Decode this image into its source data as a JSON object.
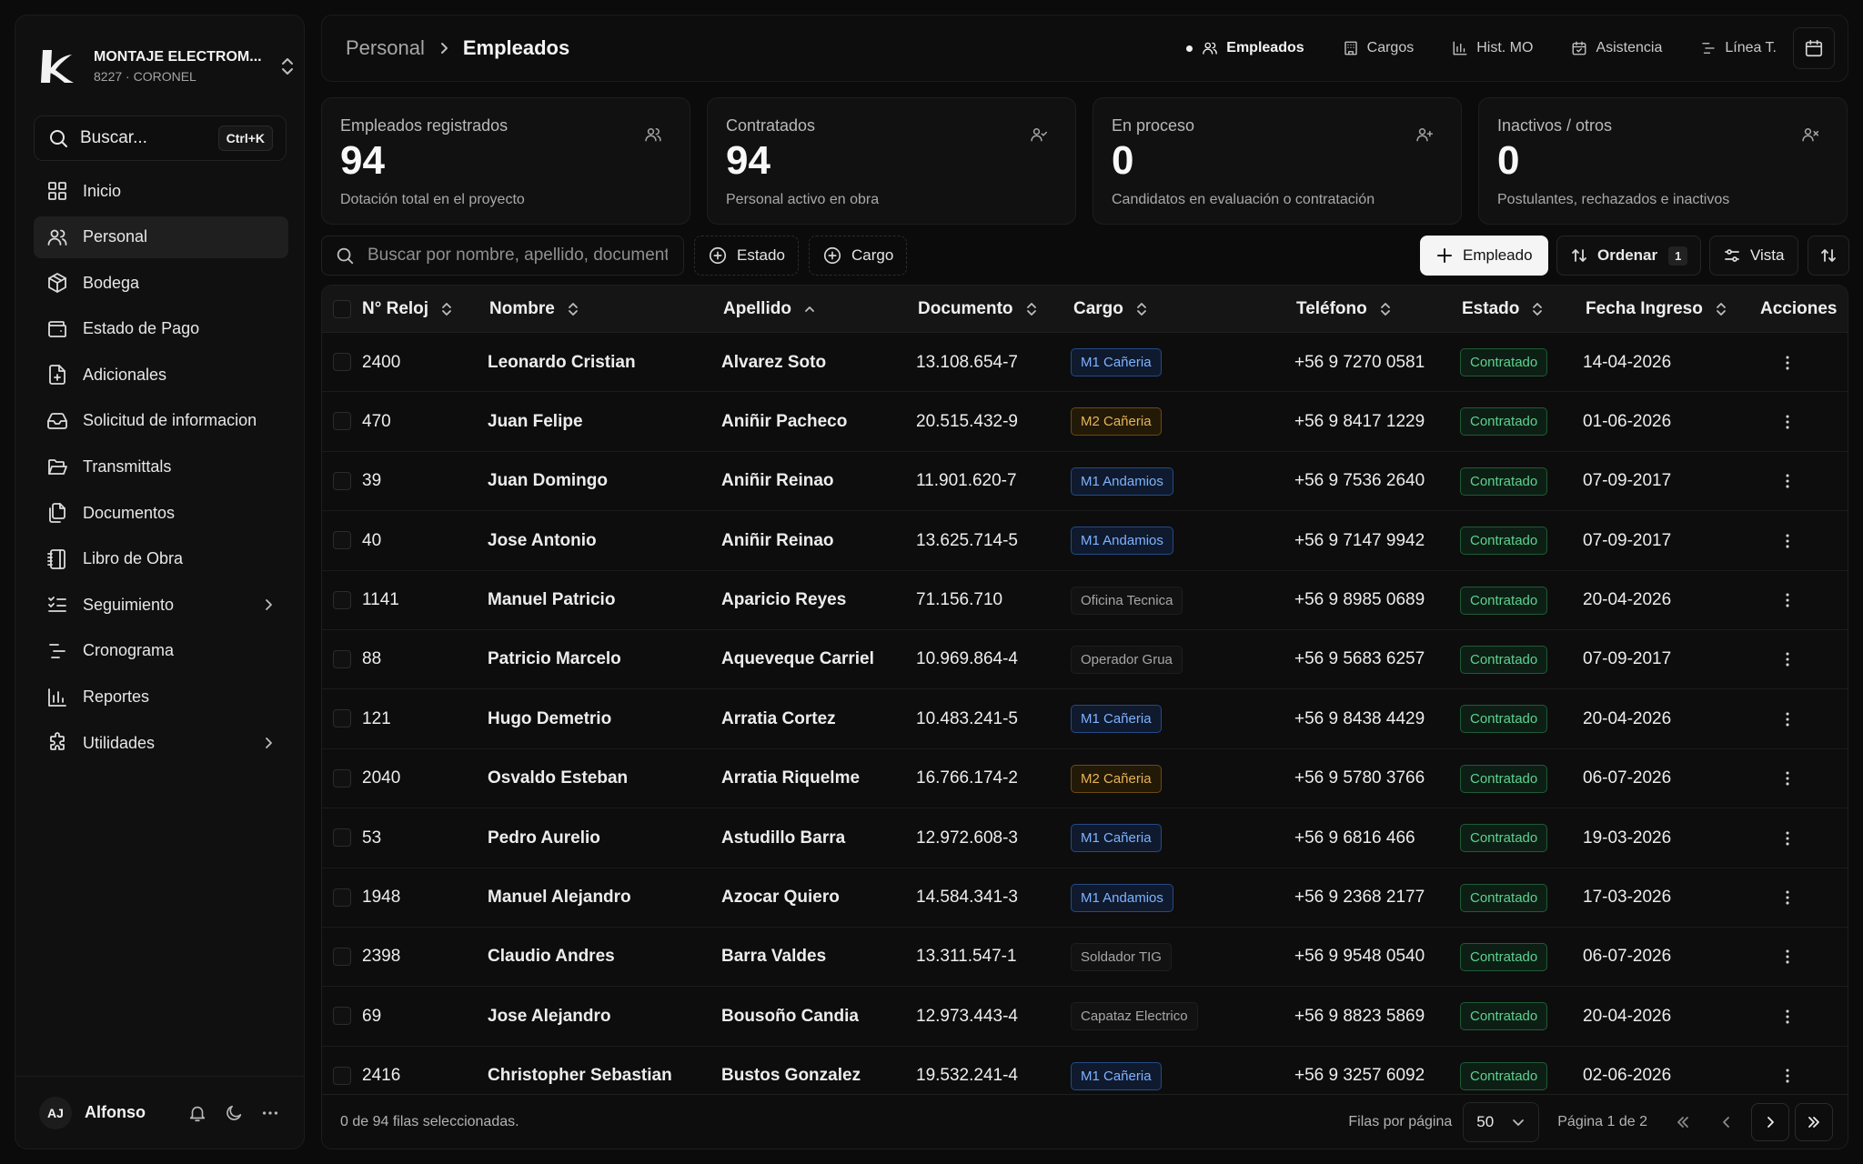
{
  "org": {
    "name": "MONTAJE ELECTROM...",
    "sub": "8227 · CORONEL"
  },
  "sidebar_search": {
    "label": "Buscar...",
    "shortcut": "Ctrl+K"
  },
  "nav": [
    {
      "label": "Inicio",
      "icon": "grid-icon"
    },
    {
      "label": "Personal",
      "icon": "users-icon",
      "active": true
    },
    {
      "label": "Bodega",
      "icon": "package-icon"
    },
    {
      "label": "Estado de Pago",
      "icon": "wallet-icon"
    },
    {
      "label": "Adicionales",
      "icon": "file-plus-icon"
    },
    {
      "label": "Solicitud de informacion",
      "icon": "inbox-icon"
    },
    {
      "label": "Transmittals",
      "icon": "folder-open-icon"
    },
    {
      "label": "Documentos",
      "icon": "files-icon"
    },
    {
      "label": "Libro de Obra",
      "icon": "notebook-icon"
    },
    {
      "label": "Seguimiento",
      "icon": "list-check-icon",
      "chevron": true
    },
    {
      "label": "Cronograma",
      "icon": "timeline-icon"
    },
    {
      "label": "Reportes",
      "icon": "bar-chart-icon"
    },
    {
      "label": "Utilidades",
      "icon": "puzzle-icon",
      "chevron": true
    }
  ],
  "user": {
    "initials": "AJ",
    "name": "Alfonso"
  },
  "breadcrumb": {
    "parent": "Personal",
    "current": "Empleados"
  },
  "tabs": [
    {
      "label": "Empleados",
      "icon": "users-icon",
      "active": true
    },
    {
      "label": "Cargos",
      "icon": "building-icon"
    },
    {
      "label": "Hist. MO",
      "icon": "bar-chart-icon"
    },
    {
      "label": "Asistencia",
      "icon": "calendar-check-icon"
    },
    {
      "label": "Línea T.",
      "icon": "timeline-icon"
    }
  ],
  "stats": [
    {
      "title": "Empleados registrados",
      "value": "94",
      "desc": "Dotación total en el proyecto",
      "icon": "users-icon"
    },
    {
      "title": "Contratados",
      "value": "94",
      "desc": "Personal activo en obra",
      "icon": "user-check-icon"
    },
    {
      "title": "En proceso",
      "value": "0",
      "desc": "Candidatos en evaluación o contratación",
      "icon": "user-plus-icon"
    },
    {
      "title": "Inactivos / otros",
      "value": "0",
      "desc": "Postulantes, rechazados e inactivos",
      "icon": "user-x-icon"
    }
  ],
  "toolbar": {
    "search_placeholder": "Buscar por nombre, apellido, documento...",
    "filter_estado": "Estado",
    "filter_cargo": "Cargo",
    "add_label": "Empleado",
    "sort_label": "Ordenar",
    "sort_count": "1",
    "view_label": "Vista"
  },
  "table": {
    "headers": {
      "reloj": "N° Reloj",
      "nombre": "Nombre",
      "apellido": "Apellido",
      "documento": "Documento",
      "cargo": "Cargo",
      "telefono": "Teléfono",
      "estado": "Estado",
      "fecha": "Fecha Ingreso",
      "acciones": "Acciones"
    },
    "rows": [
      {
        "reloj": "2400",
        "nombre": "Leonardo Cristian",
        "apellido": "Alvarez Soto",
        "documento": "13.108.654-7",
        "cargo": "M1 Cañeria",
        "cargo_color": "blue",
        "telefono": "+56 9 7270 0581",
        "estado": "Contratado",
        "fecha": "14-04-2026"
      },
      {
        "reloj": "470",
        "nombre": "Juan Felipe",
        "apellido": "Aniñir Pacheco",
        "documento": "20.515.432-9",
        "cargo": "M2 Cañeria",
        "cargo_color": "amber",
        "telefono": "+56 9 8417 1229",
        "estado": "Contratado",
        "fecha": "01-06-2026"
      },
      {
        "reloj": "39",
        "nombre": "Juan Domingo",
        "apellido": "Aniñir Reinao",
        "documento": "11.901.620-7",
        "cargo": "M1 Andamios",
        "cargo_color": "blue",
        "telefono": "+56 9 7536 2640",
        "estado": "Contratado",
        "fecha": "07-09-2017"
      },
      {
        "reloj": "40",
        "nombre": "Jose Antonio",
        "apellido": "Aniñir Reinao",
        "documento": "13.625.714-5",
        "cargo": "M1 Andamios",
        "cargo_color": "blue",
        "telefono": "+56 9 7147 9942",
        "estado": "Contratado",
        "fecha": "07-09-2017"
      },
      {
        "reloj": "1141",
        "nombre": "Manuel Patricio",
        "apellido": "Aparicio Reyes",
        "documento": "71.156.710",
        "cargo": "Oficina Tecnica",
        "cargo_color": "gray",
        "telefono": "+56 9 8985 0689",
        "estado": "Contratado",
        "fecha": "20-04-2026"
      },
      {
        "reloj": "88",
        "nombre": "Patricio Marcelo",
        "apellido": "Aqueveque Carriel",
        "documento": "10.969.864-4",
        "cargo": "Operador Grua",
        "cargo_color": "gray",
        "telefono": "+56 9 5683 6257",
        "estado": "Contratado",
        "fecha": "07-09-2017"
      },
      {
        "reloj": "121",
        "nombre": "Hugo Demetrio",
        "apellido": "Arratia Cortez",
        "documento": "10.483.241-5",
        "cargo": "M1 Cañeria",
        "cargo_color": "blue",
        "telefono": "+56 9 8438 4429",
        "estado": "Contratado",
        "fecha": "20-04-2026"
      },
      {
        "reloj": "2040",
        "nombre": "Osvaldo Esteban",
        "apellido": "Arratia Riquelme",
        "documento": "16.766.174-2",
        "cargo": "M2 Cañeria",
        "cargo_color": "amber",
        "telefono": "+56 9 5780 3766",
        "estado": "Contratado",
        "fecha": "06-07-2026"
      },
      {
        "reloj": "53",
        "nombre": "Pedro Aurelio",
        "apellido": "Astudillo Barra",
        "documento": "12.972.608-3",
        "cargo": "M1 Cañeria",
        "cargo_color": "blue",
        "telefono": "+56 9 6816 466",
        "estado": "Contratado",
        "fecha": "19-03-2026"
      },
      {
        "reloj": "1948",
        "nombre": "Manuel Alejandro",
        "apellido": "Azocar Quiero",
        "documento": "14.584.341-3",
        "cargo": "M1 Andamios",
        "cargo_color": "blue",
        "telefono": "+56 9 2368 2177",
        "estado": "Contratado",
        "fecha": "17-03-2026"
      },
      {
        "reloj": "2398",
        "nombre": "Claudio Andres",
        "apellido": "Barra Valdes",
        "documento": "13.311.547-1",
        "cargo": "Soldador TIG",
        "cargo_color": "gray",
        "telefono": "+56 9 9548 0540",
        "estado": "Contratado",
        "fecha": "06-07-2026"
      },
      {
        "reloj": "69",
        "nombre": "Jose Alejandro",
        "apellido": "Bousoño Candia",
        "documento": "12.973.443-4",
        "cargo": "Capataz Electrico",
        "cargo_color": "gray",
        "telefono": "+56 9 8823 5869",
        "estado": "Contratado",
        "fecha": "20-04-2026"
      },
      {
        "reloj": "2416",
        "nombre": "Christopher Sebastian",
        "apellido": "Bustos Gonzalez",
        "documento": "19.532.241-4",
        "cargo": "M1 Cañeria",
        "cargo_color": "blue",
        "telefono": "+56 9 3257 6092",
        "estado": "Contratado",
        "fecha": "02-06-2026"
      }
    ]
  },
  "footer": {
    "selection": "0 de 94 filas seleccionadas.",
    "rows_per_page_label": "Filas por página",
    "rows_per_page": "50",
    "page_info": "Página 1 de 2"
  }
}
